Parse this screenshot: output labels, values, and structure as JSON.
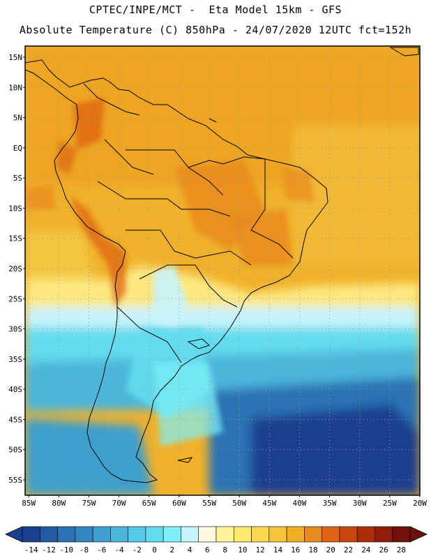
{
  "header": {
    "line1": "CPTEC/INPE/MCT -  Eta Model 15km - GFS",
    "line2": "Absolute Temperature (C) 850hPa - 24/07/2020 12UTC fct=152h"
  },
  "map": {
    "lat_labels": [
      "15N",
      "10N",
      "5N",
      "EQ",
      "5S",
      "10S",
      "15S",
      "20S",
      "25S",
      "30S",
      "35S",
      "40S",
      "45S",
      "50S",
      "55S"
    ],
    "lon_labels": [
      "85W",
      "80W",
      "75W",
      "70W",
      "65W",
      "60W",
      "55W",
      "50W",
      "45W",
      "40W",
      "35W",
      "30W",
      "25W",
      "20W"
    ]
  },
  "colorbar": {
    "labels": [
      "-14",
      "-12",
      "-10",
      "-8",
      "-6",
      "-4",
      "-2",
      "0",
      "2",
      "4",
      "6",
      "8",
      "10",
      "12",
      "14",
      "16",
      "18",
      "20",
      "22",
      "24",
      "26",
      "28"
    ],
    "colors": [
      "#1b3f8f",
      "#235aa0",
      "#2b72b2",
      "#3388bf",
      "#3d9fcc",
      "#4bb5da",
      "#57c8e5",
      "#62dbee",
      "#7ef0f8",
      "#c6f3fb",
      "#fff8e0",
      "#fff49a",
      "#fde870",
      "#f9d950",
      "#f4c43a",
      "#f0af22",
      "#e8891c",
      "#dd6414",
      "#c9450e",
      "#ad2d0b",
      "#8e1d0a",
      "#6e1108"
    ]
  }
}
